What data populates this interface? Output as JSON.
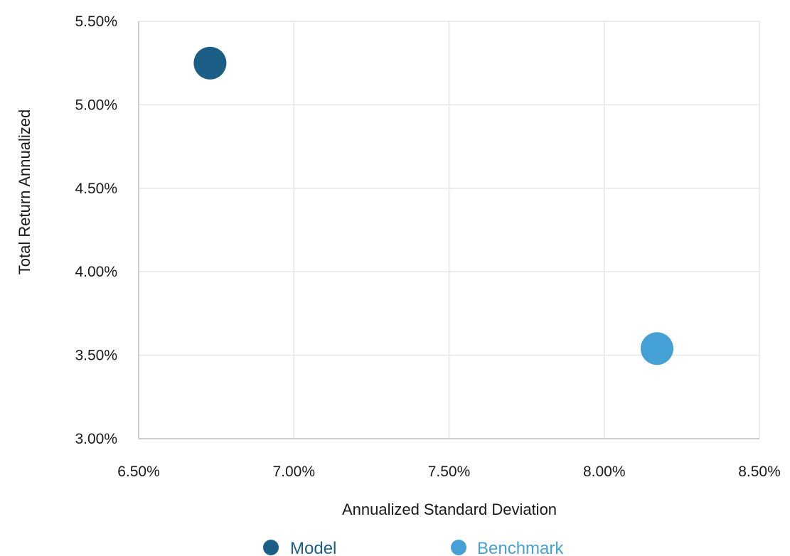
{
  "chart_data": {
    "type": "scatter",
    "xlabel": "Annualized Standard Deviation",
    "ylabel": "Total Return Annualized",
    "xlim": [
      6.5,
      8.5
    ],
    "ylim": [
      3.0,
      5.5
    ],
    "x_ticks": [
      "6.50%",
      "7.00%",
      "7.50%",
      "8.00%",
      "8.50%"
    ],
    "y_ticks": [
      "3.00%",
      "3.50%",
      "4.00%",
      "4.50%",
      "5.00%",
      "5.50%"
    ],
    "grid": "vertical and horizontal",
    "legend_position": "bottom",
    "series": [
      {
        "name": "Model",
        "color": "#1b5e86",
        "points": [
          {
            "x": 6.73,
            "y": 5.25
          }
        ]
      },
      {
        "name": "Benchmark",
        "color": "#45a0d6",
        "points": [
          {
            "x": 8.17,
            "y": 3.54
          }
        ]
      }
    ]
  }
}
